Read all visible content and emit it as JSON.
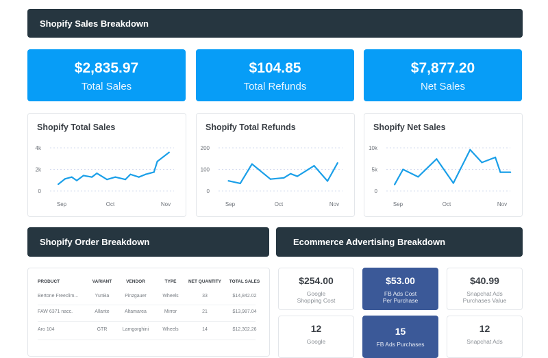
{
  "header": {
    "title": "Shopify Sales Breakdown"
  },
  "kpis": [
    {
      "value": "$2,835.97",
      "label": "Total Sales"
    },
    {
      "value": "$104.85",
      "label": "Total Refunds"
    },
    {
      "value": "$7,877.20",
      "label": "Net Sales"
    }
  ],
  "colors": {
    "header": "#263640",
    "kpi": "#079df7",
    "line": "#1a9fe8",
    "fb": "#3b5998"
  },
  "chart_data": [
    {
      "type": "line",
      "title": "Shopify Total Sales",
      "ylim": [
        0,
        4000
      ],
      "yticks": [
        {
          "v": 0,
          "label": "0"
        },
        {
          "v": 2000,
          "label": "2k"
        },
        {
          "v": 4000,
          "label": "4k"
        }
      ],
      "xticks": [
        "Sep",
        "Oct",
        "Nov"
      ],
      "grid": true,
      "x": [
        "Aug 30",
        "Sep 3",
        "Sep 7",
        "Sep 10",
        "Sep 14",
        "Sep 19",
        "Sep 22",
        "Sep 28",
        "Oct 3",
        "Oct 9",
        "Oct 12",
        "Oct 17",
        "Oct 21",
        "Oct 26",
        "Oct 28",
        "Nov 4"
      ],
      "values": [
        630,
        1120,
        1290,
        970,
        1430,
        1290,
        1640,
        1070,
        1290,
        1070,
        1540,
        1290,
        1540,
        1750,
        2740,
        3580
      ]
    },
    {
      "type": "line",
      "title": "Shopify Total Refunds",
      "ylim": [
        0,
        200
      ],
      "yticks": [
        {
          "v": 0,
          "label": "0"
        },
        {
          "v": 100,
          "label": "100"
        },
        {
          "v": 200,
          "label": "200"
        }
      ],
      "xticks": [
        "Sep",
        "Oct",
        "Nov"
      ],
      "grid": true,
      "x": [
        "Aug 31",
        "Sep 7",
        "Sep 14",
        "Sep 25",
        "Oct 3",
        "Oct 7",
        "Oct 11",
        "Oct 21",
        "Oct 29",
        "Nov 4"
      ],
      "values": [
        47,
        35,
        125,
        55,
        61,
        80,
        68,
        117,
        46,
        130
      ]
    },
    {
      "type": "line",
      "title": "Shopify Net Sales",
      "ylim": [
        0,
        10000
      ],
      "yticks": [
        {
          "v": 0,
          "label": "0"
        },
        {
          "v": 5000,
          "label": "5k"
        },
        {
          "v": 10000,
          "label": "10k"
        }
      ],
      "xticks": [
        "Sep",
        "Oct",
        "Nov"
      ],
      "grid": true,
      "x": [
        "Aug 30",
        "Sep 4",
        "Sep 13",
        "Sep 24",
        "Oct 4",
        "Oct 14",
        "Oct 21",
        "Oct 29",
        "Nov 1",
        "Nov 7"
      ],
      "values": [
        1500,
        5000,
        3280,
        7420,
        1830,
        9570,
        6610,
        7800,
        4350,
        4350
      ]
    }
  ],
  "orders": {
    "title": "Shopify Order Breakdown",
    "columns": [
      "PRODUCT",
      "VARIANT",
      "VENDOR",
      "TYPE",
      "NET QUANTITY",
      "TOTAL SALES"
    ],
    "rows": [
      [
        "Bertone Freeclim...",
        "YunBa",
        "Pinzgauer",
        "Wheels",
        "33",
        "$14,842.02"
      ],
      [
        "FAW 6371 nacc.",
        "Allante",
        "Altamarea",
        "Mirror",
        "21",
        "$13,987.04"
      ],
      [
        "Aro 104",
        "GTR",
        "Lamgorghini",
        "Wheels",
        "14",
        "$12,302.26"
      ]
    ]
  },
  "advertising": {
    "title": "Ecommerce Advertising Breakdown",
    "tiles": [
      {
        "value": "$254.00",
        "label": "Google\nShopping Cost",
        "fb": false
      },
      {
        "value": "$53.00",
        "label": "FB Ads Cost\nPer Purchase",
        "fb": true
      },
      {
        "value": "$40.99",
        "label": "Snapchat Ads\nPurchases Value",
        "fb": false
      },
      {
        "value": "12",
        "label": "Google",
        "fb": false
      },
      {
        "value": "15",
        "label": "FB Ads Purchases",
        "fb": true
      },
      {
        "value": "12",
        "label": "Snapchat Ads",
        "fb": false
      }
    ]
  }
}
